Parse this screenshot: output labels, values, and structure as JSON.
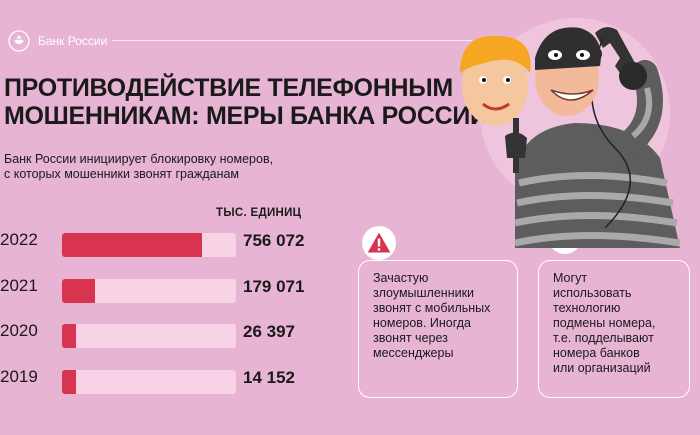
{
  "header": {
    "brand": "Банк России"
  },
  "title_line1": "ПРОТИВОДЕЙСТВИЕ ТЕЛЕФОННЫМ",
  "title_line2": "МОШЕННИКАМ: МЕРЫ БАНКА РОССИИ",
  "subtitle_line1": "Банк России инициирует блокировку номеров,",
  "subtitle_line2": "с которых мошенники звонят гражданам",
  "units_label": "ТЫС. ЕДИНИЦ",
  "chart_data": {
    "type": "bar",
    "orientation": "horizontal",
    "categories": [
      "2022",
      "2021",
      "2020",
      "2019"
    ],
    "values": [
      756072,
      179071,
      26397,
      14152
    ],
    "value_labels": [
      "756 072",
      "179 071",
      "26 397",
      "14 152"
    ],
    "unit": "ТЫС. ЕДИНИЦ",
    "bar_color": "#d9344f",
    "track_color": "#f7d3e5"
  },
  "card_left": {
    "lines": [
      "Зачастую",
      "злоумышленники",
      "звонят с мобильных",
      "номеров. Иногда",
      "звонят через",
      "мессенджеры"
    ]
  },
  "card_right": {
    "lines": [
      "Могут",
      "использовать",
      "технологию",
      "подмены номера,",
      "т.е. подделывают",
      "номера банков",
      "или организаций"
    ]
  },
  "colors": {
    "background": "#e8b4d4",
    "accent": "#d9344f",
    "text": "#1a1a1a"
  },
  "icons": [
    "bank-emblem-icon",
    "warning-icon",
    "fraudster-illustration"
  ]
}
